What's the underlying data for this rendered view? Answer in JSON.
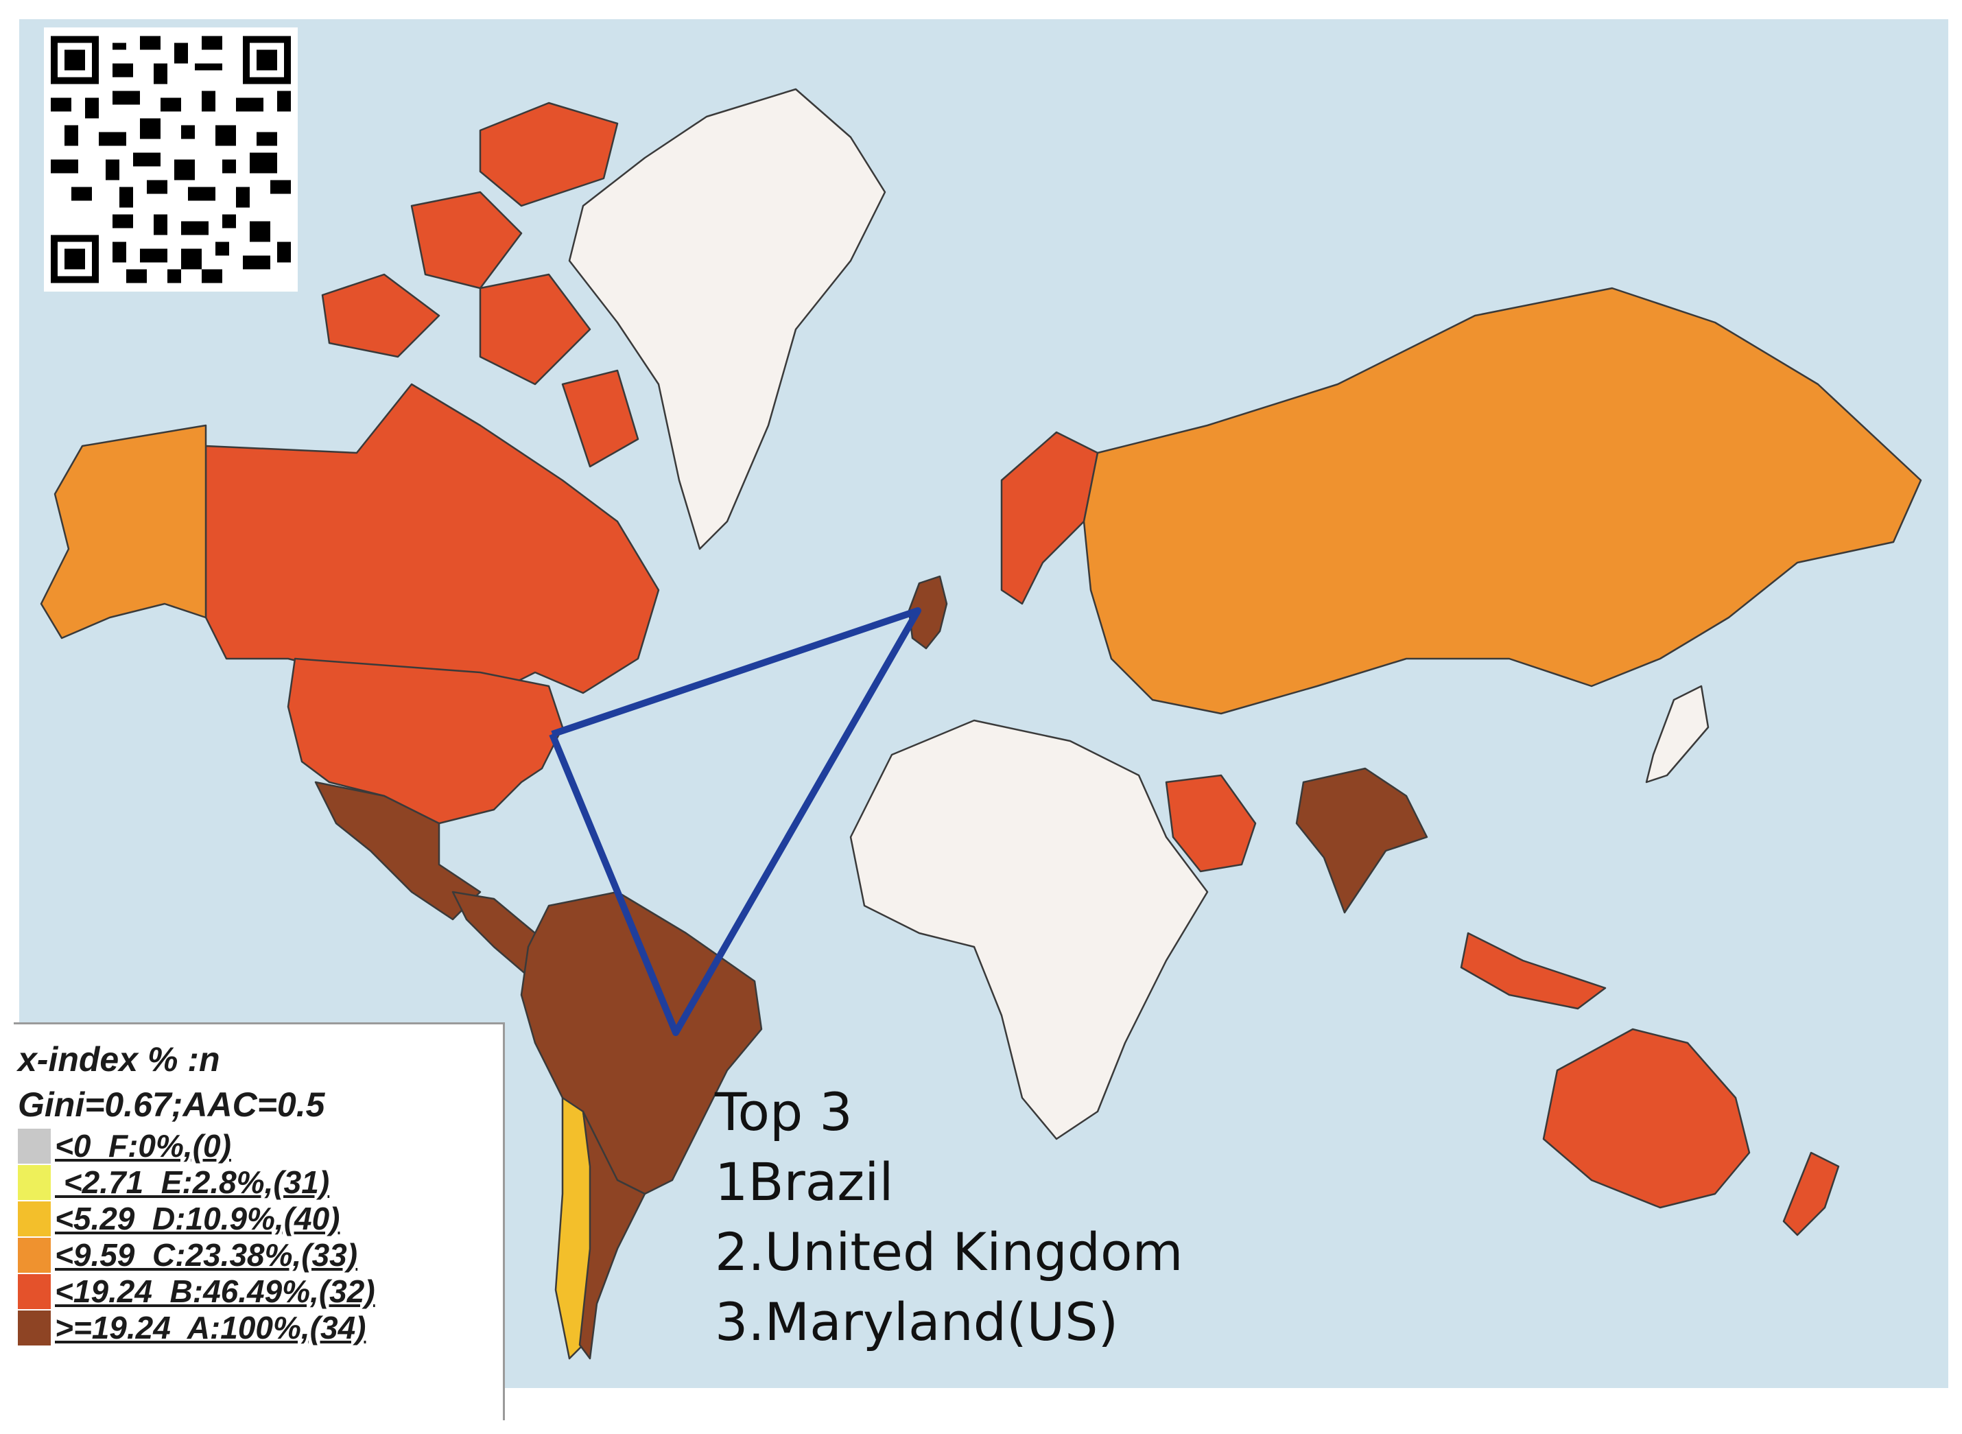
{
  "colors": {
    "ocean": "#cfe2ec",
    "F": "#c8c8c8",
    "E": "#eef05a",
    "D": "#f3bf2b",
    "C": "#ef922f",
    "B": "#e4522b",
    "A": "#8e4424",
    "none": "#f6f2ee",
    "route": "#1f3e9c"
  },
  "legend": {
    "title": "x-index % :n",
    "stats": "Gini=0.67;AAC=0.5",
    "items": [
      {
        "label": "<0  F:0%,(0)",
        "class": "F"
      },
      {
        "label": " <2.71  E:2.8%,(31)",
        "class": "E"
      },
      {
        "label": "<5.29  D:10.9%,(40)",
        "class": "D"
      },
      {
        "label": "<9.59  C:23.38%,(33)",
        "class": "C"
      },
      {
        "label": "<19.24  B:46.49%,(32)",
        "class": "B"
      },
      {
        "label": ">=19.24  A:100%,(34)",
        "class": "A"
      }
    ]
  },
  "top": {
    "title": "Top 3",
    "items": [
      "1Brazil",
      "2.United Kingdom",
      "3.Maryland(US)"
    ]
  },
  "regions": [
    {
      "name": "Canada Arctic",
      "class": "B"
    },
    {
      "name": "Canada",
      "class": "B"
    },
    {
      "name": "Alaska",
      "class": "C"
    },
    {
      "name": "Greenland",
      "class": "none"
    },
    {
      "name": "USA",
      "class": "B"
    },
    {
      "name": "Mexico",
      "class": "A"
    },
    {
      "name": "Central America",
      "class": "A"
    },
    {
      "name": "Brazil",
      "class": "A"
    },
    {
      "name": "Chile",
      "class": "D"
    },
    {
      "name": "Argentina",
      "class": "A"
    },
    {
      "name": "United Kingdom",
      "class": "A"
    },
    {
      "name": "Norway",
      "class": "B"
    },
    {
      "name": "Russia",
      "class": "C"
    },
    {
      "name": "Africa",
      "class": "none"
    },
    {
      "name": "India",
      "class": "A"
    },
    {
      "name": "Saudi Arabia",
      "class": "B"
    },
    {
      "name": "Australia",
      "class": "none"
    },
    {
      "name": "New Zealand",
      "class": "B"
    },
    {
      "name": "Japan",
      "class": "B"
    },
    {
      "name": "Indonesia",
      "class": "B"
    }
  ],
  "route": {
    "from": "Maryland(US)",
    "via": [
      "United Kingdom",
      "Brazil"
    ]
  }
}
